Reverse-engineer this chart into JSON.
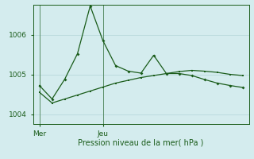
{
  "background_color": "#d4ecee",
  "grid_color": "#b8d8dc",
  "line_color": "#1a5c1a",
  "xlabel": "Pression niveau de la mer( hPa )",
  "ylim": [
    1003.75,
    1006.75
  ],
  "yticks": [
    1004,
    1005,
    1006
  ],
  "x_ticks_pos": [
    0,
    5
  ],
  "x_ticks_labels": [
    "Mer",
    "Jeu"
  ],
  "n_points": 17,
  "series1_x": [
    0,
    1,
    2,
    3,
    4,
    5,
    6,
    7,
    8,
    9,
    10,
    11,
    12,
    13,
    14,
    15,
    16
  ],
  "series1_y": [
    1004.72,
    1004.38,
    1004.88,
    1005.52,
    1006.72,
    1005.85,
    1005.22,
    1005.08,
    1005.03,
    1005.48,
    1005.02,
    1005.02,
    1004.97,
    1004.87,
    1004.78,
    1004.72,
    1004.67
  ],
  "series2_x": [
    0,
    1,
    2,
    3,
    4,
    5,
    6,
    7,
    8,
    9,
    10,
    11,
    12,
    13,
    14,
    15,
    16
  ],
  "series2_y": [
    1004.55,
    1004.28,
    1004.38,
    1004.48,
    1004.58,
    1004.68,
    1004.78,
    1004.85,
    1004.92,
    1004.97,
    1005.02,
    1005.07,
    1005.1,
    1005.08,
    1005.05,
    1005.0,
    1004.97
  ]
}
